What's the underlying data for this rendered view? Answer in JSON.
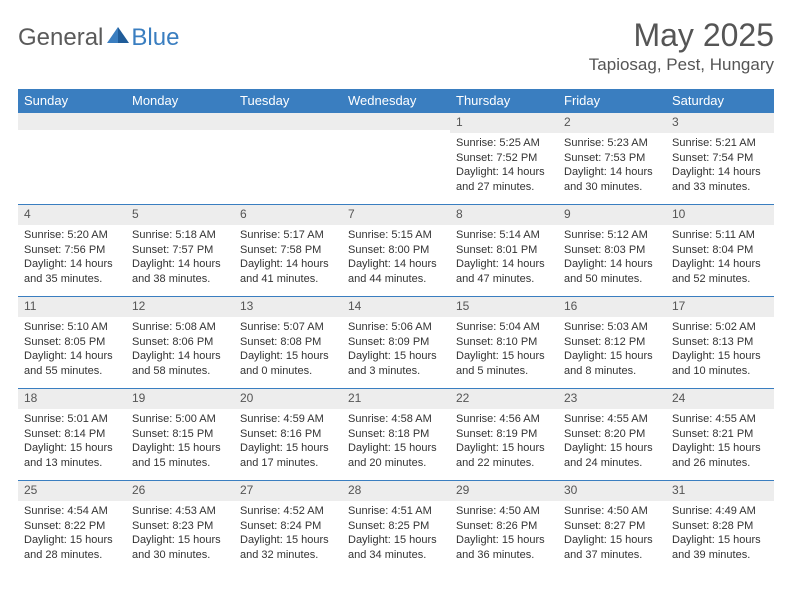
{
  "brand": {
    "general": "General",
    "blue": "Blue"
  },
  "title": "May 2025",
  "location": "Tapiosag, Pest, Hungary",
  "colors": {
    "accent": "#3a7ec0",
    "band": "#ededed",
    "text": "#333333",
    "heading": "#555555",
    "background": "#ffffff"
  },
  "calendar": {
    "weekdays": [
      "Sunday",
      "Monday",
      "Tuesday",
      "Wednesday",
      "Thursday",
      "Friday",
      "Saturday"
    ],
    "weeks": [
      [
        {
          "n": "",
          "sr": "",
          "ss": "",
          "dl": ""
        },
        {
          "n": "",
          "sr": "",
          "ss": "",
          "dl": ""
        },
        {
          "n": "",
          "sr": "",
          "ss": "",
          "dl": ""
        },
        {
          "n": "",
          "sr": "",
          "ss": "",
          "dl": ""
        },
        {
          "n": "1",
          "sr": "Sunrise: 5:25 AM",
          "ss": "Sunset: 7:52 PM",
          "dl": "Daylight: 14 hours and 27 minutes."
        },
        {
          "n": "2",
          "sr": "Sunrise: 5:23 AM",
          "ss": "Sunset: 7:53 PM",
          "dl": "Daylight: 14 hours and 30 minutes."
        },
        {
          "n": "3",
          "sr": "Sunrise: 5:21 AM",
          "ss": "Sunset: 7:54 PM",
          "dl": "Daylight: 14 hours and 33 minutes."
        }
      ],
      [
        {
          "n": "4",
          "sr": "Sunrise: 5:20 AM",
          "ss": "Sunset: 7:56 PM",
          "dl": "Daylight: 14 hours and 35 minutes."
        },
        {
          "n": "5",
          "sr": "Sunrise: 5:18 AM",
          "ss": "Sunset: 7:57 PM",
          "dl": "Daylight: 14 hours and 38 minutes."
        },
        {
          "n": "6",
          "sr": "Sunrise: 5:17 AM",
          "ss": "Sunset: 7:58 PM",
          "dl": "Daylight: 14 hours and 41 minutes."
        },
        {
          "n": "7",
          "sr": "Sunrise: 5:15 AM",
          "ss": "Sunset: 8:00 PM",
          "dl": "Daylight: 14 hours and 44 minutes."
        },
        {
          "n": "8",
          "sr": "Sunrise: 5:14 AM",
          "ss": "Sunset: 8:01 PM",
          "dl": "Daylight: 14 hours and 47 minutes."
        },
        {
          "n": "9",
          "sr": "Sunrise: 5:12 AM",
          "ss": "Sunset: 8:03 PM",
          "dl": "Daylight: 14 hours and 50 minutes."
        },
        {
          "n": "10",
          "sr": "Sunrise: 5:11 AM",
          "ss": "Sunset: 8:04 PM",
          "dl": "Daylight: 14 hours and 52 minutes."
        }
      ],
      [
        {
          "n": "11",
          "sr": "Sunrise: 5:10 AM",
          "ss": "Sunset: 8:05 PM",
          "dl": "Daylight: 14 hours and 55 minutes."
        },
        {
          "n": "12",
          "sr": "Sunrise: 5:08 AM",
          "ss": "Sunset: 8:06 PM",
          "dl": "Daylight: 14 hours and 58 minutes."
        },
        {
          "n": "13",
          "sr": "Sunrise: 5:07 AM",
          "ss": "Sunset: 8:08 PM",
          "dl": "Daylight: 15 hours and 0 minutes."
        },
        {
          "n": "14",
          "sr": "Sunrise: 5:06 AM",
          "ss": "Sunset: 8:09 PM",
          "dl": "Daylight: 15 hours and 3 minutes."
        },
        {
          "n": "15",
          "sr": "Sunrise: 5:04 AM",
          "ss": "Sunset: 8:10 PM",
          "dl": "Daylight: 15 hours and 5 minutes."
        },
        {
          "n": "16",
          "sr": "Sunrise: 5:03 AM",
          "ss": "Sunset: 8:12 PM",
          "dl": "Daylight: 15 hours and 8 minutes."
        },
        {
          "n": "17",
          "sr": "Sunrise: 5:02 AM",
          "ss": "Sunset: 8:13 PM",
          "dl": "Daylight: 15 hours and 10 minutes."
        }
      ],
      [
        {
          "n": "18",
          "sr": "Sunrise: 5:01 AM",
          "ss": "Sunset: 8:14 PM",
          "dl": "Daylight: 15 hours and 13 minutes."
        },
        {
          "n": "19",
          "sr": "Sunrise: 5:00 AM",
          "ss": "Sunset: 8:15 PM",
          "dl": "Daylight: 15 hours and 15 minutes."
        },
        {
          "n": "20",
          "sr": "Sunrise: 4:59 AM",
          "ss": "Sunset: 8:16 PM",
          "dl": "Daylight: 15 hours and 17 minutes."
        },
        {
          "n": "21",
          "sr": "Sunrise: 4:58 AM",
          "ss": "Sunset: 8:18 PM",
          "dl": "Daylight: 15 hours and 20 minutes."
        },
        {
          "n": "22",
          "sr": "Sunrise: 4:56 AM",
          "ss": "Sunset: 8:19 PM",
          "dl": "Daylight: 15 hours and 22 minutes."
        },
        {
          "n": "23",
          "sr": "Sunrise: 4:55 AM",
          "ss": "Sunset: 8:20 PM",
          "dl": "Daylight: 15 hours and 24 minutes."
        },
        {
          "n": "24",
          "sr": "Sunrise: 4:55 AM",
          "ss": "Sunset: 8:21 PM",
          "dl": "Daylight: 15 hours and 26 minutes."
        }
      ],
      [
        {
          "n": "25",
          "sr": "Sunrise: 4:54 AM",
          "ss": "Sunset: 8:22 PM",
          "dl": "Daylight: 15 hours and 28 minutes."
        },
        {
          "n": "26",
          "sr": "Sunrise: 4:53 AM",
          "ss": "Sunset: 8:23 PM",
          "dl": "Daylight: 15 hours and 30 minutes."
        },
        {
          "n": "27",
          "sr": "Sunrise: 4:52 AM",
          "ss": "Sunset: 8:24 PM",
          "dl": "Daylight: 15 hours and 32 minutes."
        },
        {
          "n": "28",
          "sr": "Sunrise: 4:51 AM",
          "ss": "Sunset: 8:25 PM",
          "dl": "Daylight: 15 hours and 34 minutes."
        },
        {
          "n": "29",
          "sr": "Sunrise: 4:50 AM",
          "ss": "Sunset: 8:26 PM",
          "dl": "Daylight: 15 hours and 36 minutes."
        },
        {
          "n": "30",
          "sr": "Sunrise: 4:50 AM",
          "ss": "Sunset: 8:27 PM",
          "dl": "Daylight: 15 hours and 37 minutes."
        },
        {
          "n": "31",
          "sr": "Sunrise: 4:49 AM",
          "ss": "Sunset: 8:28 PM",
          "dl": "Daylight: 15 hours and 39 minutes."
        }
      ]
    ]
  }
}
